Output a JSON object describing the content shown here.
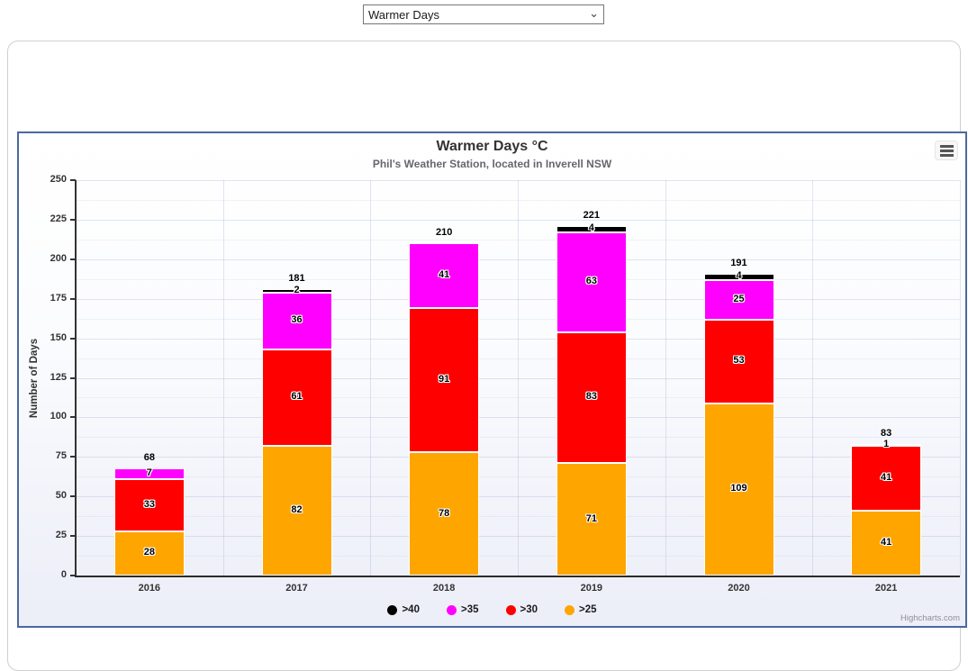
{
  "dropdown": {
    "value": "Warmer Days"
  },
  "chart_data": {
    "type": "bar",
    "stacked": true,
    "title": "Warmer Days °C",
    "subtitle": "Phil's Weather Station, located in Inverell NSW",
    "categories": [
      "2016",
      "2017",
      "2018",
      "2019",
      "2020",
      "2021"
    ],
    "series": [
      {
        "name": ">25",
        "color": "#FFA500",
        "values": [
          28,
          82,
          78,
          71,
          109,
          41
        ]
      },
      {
        "name": ">30",
        "color": "#FF0000",
        "values": [
          33,
          61,
          91,
          83,
          53,
          41
        ]
      },
      {
        "name": ">35",
        "color": "#FF00FF",
        "values": [
          7,
          36,
          41,
          63,
          25,
          1
        ]
      },
      {
        "name": ">40",
        "color": "#000000",
        "values": [
          0,
          2,
          0,
          4,
          4,
          0
        ]
      }
    ],
    "totals": [
      68,
      181,
      210,
      221,
      191,
      83
    ],
    "legend_order": [
      ">40",
      ">35",
      ">30",
      ">25"
    ],
    "xlabel": "",
    "ylabel": "Number of Days",
    "ylim": [
      0,
      250
    ],
    "tick_interval": 25,
    "minor_tick_interval": 12.5,
    "grid": true,
    "legend_position": "bottom",
    "credits": "Highcharts.com"
  },
  "colors": {
    "chart_border": "#4a699e",
    "axis": "#333333"
  }
}
